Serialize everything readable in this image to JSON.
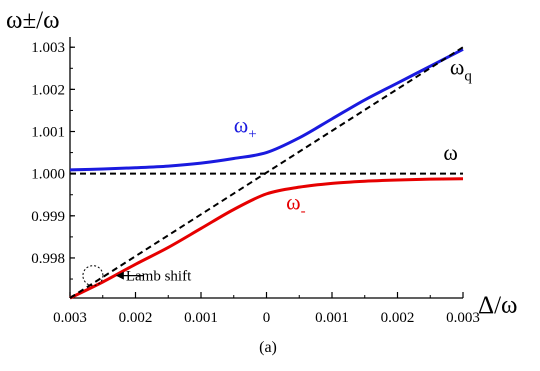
{
  "chart_data": {
    "type": "line",
    "ylabel": "ω±/ω",
    "xlabel": "Δ/ω",
    "xlim": [
      -0.003,
      0.003
    ],
    "ylim": [
      0.99705,
      1.0031
    ],
    "x_ticks": [
      -0.003,
      -0.002,
      -0.001,
      0,
      0.001,
      0.002,
      0.003
    ],
    "x_tick_labels": [
      "0.003",
      "0.002",
      "0.001",
      "0",
      "0.001",
      "0.002",
      "0.003"
    ],
    "y_ticks": [
      0.998,
      0.999,
      1.0,
      1.001,
      1.002,
      1.003
    ],
    "y_tick_labels": [
      "0.998",
      "0.999",
      "1.000",
      "1.001",
      "1.002",
      "1.003"
    ],
    "grid": false,
    "caption": "(a)",
    "series": [
      {
        "name": "ω+",
        "color": "#1a1adf",
        "style": "solid",
        "x": [
          -0.003,
          -0.0025,
          -0.002,
          -0.0015,
          -0.001,
          -0.0005,
          0,
          0.0005,
          0.001,
          0.0015,
          0.002,
          0.0025,
          0.003
        ],
        "y": [
          1.00009,
          1.00011,
          1.00014,
          1.00018,
          1.00025,
          1.00036,
          1.0005,
          1.00085,
          1.0013,
          1.00175,
          1.00215,
          1.00255,
          1.00295
        ]
      },
      {
        "name": "ω-",
        "color": "#e60000",
        "style": "solid",
        "x": [
          -0.003,
          -0.0025,
          -0.002,
          -0.0015,
          -0.001,
          -0.0005,
          0,
          0.0005,
          0.001,
          0.0015,
          0.002,
          0.0025,
          0.003
        ],
        "y": [
          0.99705,
          0.99743,
          0.99785,
          0.99825,
          0.9987,
          0.99915,
          0.99952,
          0.99968,
          0.99977,
          0.99982,
          0.99985,
          0.99987,
          0.99988
        ]
      },
      {
        "name": "ωq",
        "color": "#000000",
        "style": "dashed",
        "x": [
          -0.003,
          0.003
        ],
        "y": [
          0.99705,
          1.003
        ]
      },
      {
        "name": "ω",
        "color": "#000000",
        "style": "dashed",
        "x": [
          -0.003,
          0.003
        ],
        "y": [
          1.0,
          1.0
        ]
      }
    ],
    "annotations": [
      {
        "text": "ω+",
        "color": "#1a1adf",
        "x": -0.0005,
        "y": 1.00098
      },
      {
        "text": "ω-",
        "color": "#e60000",
        "x": 0.0003,
        "y": 0.99915
      },
      {
        "text": "ωq",
        "color": "#000000",
        "x": 0.0028,
        "y": 1.00235
      },
      {
        "text": "ω",
        "color": "#000000",
        "x": 0.0027,
        "y": 1.00032
      },
      {
        "text": "Lamb shift",
        "color": "#000000",
        "x": -0.0024,
        "y": 0.99752
      }
    ]
  }
}
